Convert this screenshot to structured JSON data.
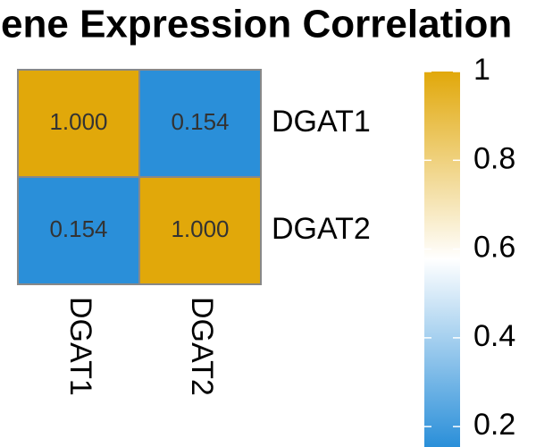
{
  "chart_data": {
    "type": "heatmap",
    "title": "Gene Expression Correlation",
    "x_categories": [
      "DGAT1",
      "DGAT2"
    ],
    "y_categories": [
      "DGAT1",
      "DGAT2"
    ],
    "values": [
      [
        1.0,
        0.154
      ],
      [
        0.154,
        1.0
      ]
    ],
    "value_labels": [
      [
        "1.000",
        "0.154"
      ],
      [
        "0.154",
        "1.000"
      ]
    ],
    "colorbar": {
      "lim": [
        0.154,
        1
      ],
      "ticks": [
        0.2,
        0.4,
        0.6,
        0.8,
        1
      ],
      "low_color": "#2a8fd9",
      "mid_color": "#ffffff",
      "high_color": "#e1a80a"
    }
  }
}
